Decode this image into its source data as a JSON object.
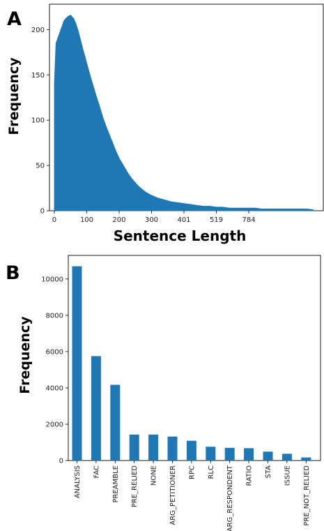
{
  "chart_data": [
    {
      "panel": "A",
      "type": "area",
      "title": "",
      "xlabel": "Sentence Length",
      "ylabel": "Frequency",
      "xlim": [
        -15,
        830
      ],
      "ylim": [
        0,
        228
      ],
      "x_ticks": [
        0,
        100,
        200,
        300,
        401,
        519,
        784
      ],
      "y_ticks": [
        0,
        50,
        100,
        150,
        200
      ],
      "color": "#1f77b4",
      "series": [
        {
          "x": [
            0,
            5,
            10,
            15,
            20,
            25,
            30,
            35,
            40,
            45,
            50,
            55,
            60,
            65,
            70,
            75,
            80,
            85,
            90,
            95,
            100,
            110,
            120,
            130,
            140,
            150,
            160,
            170,
            180,
            190,
            200,
            210,
            220,
            230,
            240,
            250,
            260,
            270,
            280,
            290,
            300,
            320,
            340,
            360,
            380,
            400,
            420,
            440,
            460,
            480,
            500,
            520,
            540,
            560,
            580,
            600,
            620,
            640,
            660,
            680,
            700,
            720,
            740,
            760,
            780,
            800
          ],
          "values": [
            140,
            185,
            190,
            195,
            200,
            205,
            210,
            212,
            214,
            215,
            216,
            214,
            212,
            208,
            203,
            197,
            190,
            183,
            176,
            170,
            163,
            150,
            138,
            126,
            115,
            103,
            93,
            84,
            75,
            66,
            58,
            52,
            46,
            40,
            35,
            31,
            27,
            24,
            21,
            19,
            17,
            14,
            12,
            10,
            9,
            8,
            7,
            6,
            5,
            5,
            4,
            4,
            3,
            3,
            3,
            3,
            3,
            2,
            2,
            2,
            2,
            2,
            2,
            2,
            2,
            1
          ]
        }
      ]
    },
    {
      "panel": "B",
      "type": "bar",
      "title": "",
      "xlabel": "",
      "ylabel": "Frequency",
      "ylim": [
        0,
        11300
      ],
      "y_ticks": [
        0,
        2000,
        4000,
        6000,
        8000,
        10000
      ],
      "color": "#1f77b4",
      "categories": [
        "ANALYSIS",
        "FAC",
        "PREAMBLE",
        "PRE_RELIED",
        "NONE",
        "ARG_PETITIONER",
        "RPC",
        "RLC",
        "ARG_RESPONDENT",
        "RATIO",
        "STA",
        "ISSUE",
        "PRE_NOT_RELIED"
      ],
      "values": [
        10700,
        5750,
        4170,
        1430,
        1430,
        1320,
        1090,
        760,
        700,
        680,
        490,
        370,
        170
      ]
    }
  ]
}
